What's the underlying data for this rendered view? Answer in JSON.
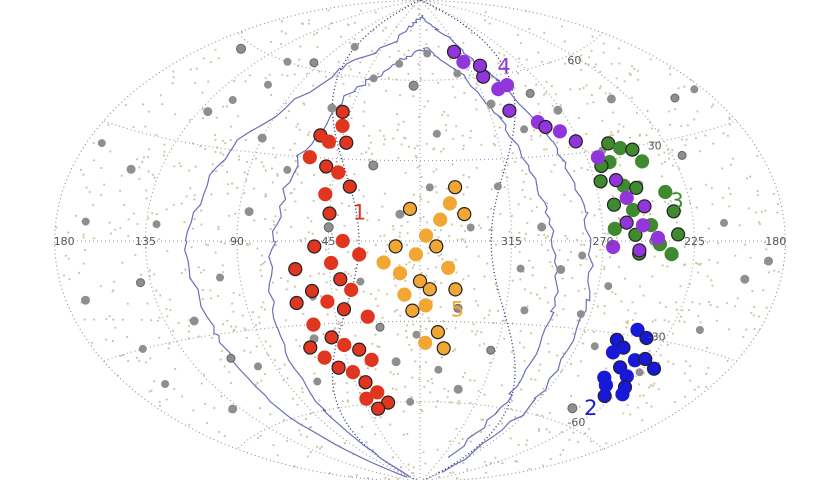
{
  "chart_data": {
    "type": "scatter",
    "projection": "aitoff",
    "title": "",
    "xlabel": "",
    "ylabel": "",
    "xlim": [
      -180,
      180
    ],
    "ylim": [
      -90,
      90
    ],
    "grid": true,
    "x_ticks": [
      "180",
      "135",
      "90",
      "45",
      "315",
      "270",
      "225",
      "180"
    ],
    "y_ticks": [
      "60",
      "30",
      "-30",
      "-60"
    ],
    "grey_points": [
      [
        158,
        58
      ],
      [
        122,
        45
      ],
      [
        110,
        52
      ],
      [
        150,
        20
      ],
      [
        165,
        5
      ],
      [
        140,
        -12
      ],
      [
        120,
        -25
      ],
      [
        100,
        -42
      ],
      [
        155,
        -30
      ],
      [
        130,
        40
      ],
      [
        95,
        62
      ],
      [
        75,
        70
      ],
      [
        58,
        48
      ],
      [
        38,
        60
      ],
      [
        20,
        66
      ],
      [
        5,
        58
      ],
      [
        -8,
        70
      ],
      [
        -32,
        62
      ],
      [
        -48,
        50
      ],
      [
        -62,
        40
      ],
      [
        -78,
        52
      ],
      [
        -88,
        45
      ],
      [
        -100,
        30
      ],
      [
        -112,
        18
      ],
      [
        -125,
        45
      ],
      [
        -140,
        25
      ],
      [
        -150,
        5
      ],
      [
        -162,
        -10
      ],
      [
        -150,
        -25
      ],
      [
        -135,
        -40
      ],
      [
        -118,
        -55
      ],
      [
        -100,
        -35
      ],
      [
        -85,
        -25
      ],
      [
        -70,
        -10
      ],
      [
        -55,
        -25
      ],
      [
        -42,
        -40
      ],
      [
        -28,
        -55
      ],
      [
        -12,
        -48
      ],
      [
        2,
        -35
      ],
      [
        15,
        -45
      ],
      [
        22,
        -32
      ],
      [
        8,
        -60
      ],
      [
        -15,
        -10
      ],
      [
        -25,
        5
      ],
      [
        -5,
        20
      ],
      [
        25,
        28
      ],
      [
        50,
        35
      ],
      [
        70,
        25
      ],
      [
        85,
        10
      ],
      [
        100,
        -12
      ],
      [
        112,
        -38
      ],
      [
        140,
        -52
      ],
      [
        160,
        -40
      ],
      [
        172,
        25
      ],
      [
        -172,
        -5
      ],
      [
        -160,
        40
      ],
      [
        -40,
        20
      ],
      [
        -60,
        5
      ],
      [
        -80,
        -5
      ],
      [
        30,
        -15
      ],
      [
        45,
        5
      ],
      [
        55,
        -20
      ],
      [
        70,
        -50
      ],
      [
        90,
        35
      ],
      [
        -10,
        40
      ],
      [
        -20,
        -25
      ],
      [
        10,
        10
      ],
      [
        -50,
        -10
      ],
      [
        -95,
        -15
      ],
      [
        60,
        -35
      ],
      [
        -115,
        0
      ],
      [
        130,
        5
      ],
      [
        170,
        -15
      ],
      [
        -175,
        40
      ],
      [
        115,
        60
      ]
    ],
    "series": [
      {
        "name": "1",
        "points": [
          [
            50,
            47
          ],
          [
            47,
            42
          ],
          [
            58,
            38
          ],
          [
            52,
            36
          ],
          [
            42,
            36
          ],
          [
            60,
            30
          ],
          [
            50,
            27
          ],
          [
            43,
            25
          ],
          [
            36,
            20
          ],
          [
            48,
            17
          ],
          [
            45,
            10
          ],
          [
            38,
            0
          ],
          [
            52,
            -2
          ],
          [
            44,
            -8
          ],
          [
            40,
            -14
          ],
          [
            30,
            -5
          ],
          [
            62,
            -10
          ],
          [
            35,
            -18
          ],
          [
            55,
            -18
          ],
          [
            48,
            -22
          ],
          [
            40,
            -25
          ],
          [
            28,
            -28
          ],
          [
            64,
            -22
          ],
          [
            58,
            -30
          ],
          [
            50,
            -35
          ],
          [
            44,
            -38
          ],
          [
            36,
            -40
          ],
          [
            30,
            -44
          ],
          [
            64,
            -38
          ],
          [
            58,
            -42
          ],
          [
            52,
            -46
          ],
          [
            44,
            -48
          ],
          [
            38,
            -52
          ],
          [
            32,
            -56
          ],
          [
            26,
            -60
          ],
          [
            42,
            -58
          ],
          [
            36,
            -62
          ]
        ]
      },
      {
        "name": "2",
        "points": [
          [
            -110,
            -32
          ],
          [
            -118,
            -28
          ],
          [
            -116,
            -34
          ],
          [
            -112,
            -36
          ],
          [
            -125,
            -30
          ],
          [
            -127,
            -37
          ],
          [
            -122,
            -40
          ],
          [
            -130,
            -42
          ],
          [
            -135,
            -45
          ],
          [
            -138,
            -47
          ],
          [
            -129,
            -49
          ],
          [
            -123,
            -46
          ],
          [
            -141,
            -38
          ],
          [
            -118,
            -44
          ],
          [
            -132,
            -36
          ]
        ]
      },
      {
        "name": "3",
        "points": [
          [
            -105,
            32
          ],
          [
            -110,
            30
          ],
          [
            -116,
            29
          ],
          [
            -101,
            26
          ],
          [
            -96,
            25
          ],
          [
            -118,
            25
          ],
          [
            -93,
            20
          ],
          [
            -104,
            18
          ],
          [
            -110,
            17
          ],
          [
            -124,
            15
          ],
          [
            -97,
            12
          ],
          [
            -106,
            10
          ],
          [
            -126,
            9
          ],
          [
            -114,
            5
          ],
          [
            -106,
            2
          ],
          [
            -118,
            -1
          ],
          [
            -108,
            -4
          ],
          [
            -124,
            -4
          ],
          [
            -127,
            2
          ],
          [
            -96,
            4
          ]
        ]
      },
      {
        "name": "4",
        "points": [
          [
            -38,
            70
          ],
          [
            -42,
            66
          ],
          [
            -52,
            60
          ],
          [
            -58,
            55
          ],
          [
            -55,
            64
          ],
          [
            -66,
            56
          ],
          [
            -58,
            47
          ],
          [
            -72,
            42
          ],
          [
            -75,
            40
          ],
          [
            -82,
            38
          ],
          [
            -88,
            34
          ],
          [
            -96,
            28
          ],
          [
            -101,
            20
          ],
          [
            -104,
            14
          ],
          [
            -112,
            11
          ],
          [
            -110,
            5
          ],
          [
            -102,
            6
          ],
          [
            -117,
            1
          ],
          [
            -108,
            -3
          ],
          [
            -95,
            -2
          ]
        ]
      },
      {
        "name": "5",
        "points": [
          [
            -18,
            20
          ],
          [
            -15,
            14
          ],
          [
            -22,
            10
          ],
          [
            -10,
            8
          ],
          [
            5,
            12
          ],
          [
            -3,
            2
          ],
          [
            -8,
            -2
          ],
          [
            2,
            -5
          ],
          [
            12,
            -2
          ],
          [
            -14,
            -10
          ],
          [
            0,
            -15
          ],
          [
            10,
            -12
          ],
          [
            -5,
            -18
          ],
          [
            18,
            -8
          ],
          [
            -18,
            -18
          ],
          [
            8,
            -20
          ],
          [
            4,
            -26
          ],
          [
            -3,
            -24
          ],
          [
            -10,
            -34
          ],
          [
            -3,
            -38
          ],
          [
            -14,
            -40
          ]
        ]
      }
    ],
    "colors": {
      "grey": "#8f8f8f",
      "background_dots": "#d2c4a2",
      "outline": "#6a6fba",
      "1": "#e0351f",
      "2": "#1818d8",
      "3": "#3f8a2e",
      "4": "#9236dc",
      "5": "#f2a634"
    }
  }
}
